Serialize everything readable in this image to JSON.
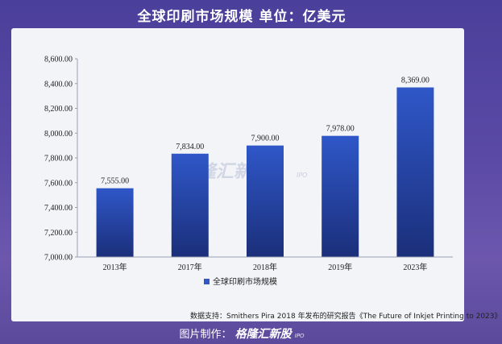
{
  "header": {
    "title": "全球印刷市场规模 单位：亿美元"
  },
  "watermark": {
    "brand": "格隆汇新股",
    "sub": "IPO"
  },
  "source_note": "数据支持：Smithers Pira 2018 年发布的研究报告《The Future of Inkjet Printing to 2023》",
  "credit": {
    "label": "图片制作：",
    "brand": "格隆汇新股",
    "sub": "IPO"
  },
  "colors": {
    "bar_top": "#2f57c8",
    "bar_bottom": "#1b2f7a",
    "axis": "#9aa0b0"
  },
  "chart_data": {
    "type": "bar",
    "title": "全球印刷市场规模 单位：亿美元",
    "categories": [
      "2013年",
      "2017年",
      "2018年",
      "2019年",
      "2023年"
    ],
    "series": [
      {
        "name": "全球印刷市场规模",
        "values": [
          7555.0,
          7834.0,
          7900.0,
          7978.0,
          8369.0
        ]
      }
    ],
    "value_labels": [
      "7,555.00",
      "7,834.00",
      "7,900.00",
      "7,978.00",
      "8,369.00"
    ],
    "ylim": [
      7000,
      8600
    ],
    "yticks": [
      7000,
      7200,
      7400,
      7600,
      7800,
      8000,
      8200,
      8400,
      8600
    ],
    "ytick_labels": [
      "7,000.00",
      "7,200.00",
      "7,400.00",
      "7,600.00",
      "7,800.00",
      "8,000.00",
      "8,200.00",
      "8,400.00",
      "8,600.00"
    ],
    "grid": false,
    "legend": "bottom-center"
  }
}
